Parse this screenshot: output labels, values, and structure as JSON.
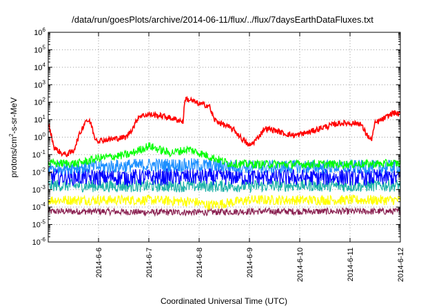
{
  "chart_data": {
    "type": "line",
    "title": "/data/run/goesPlots/archive/2014-06-11/flux/../flux/7daysEarthDataFluxes.txt",
    "xlabel": "Coordinated Universal Time (UTC)",
    "ylabel": {
      "prefix": "protons/cm",
      "sup": "2",
      "suffix": "-s-sr-MeV"
    },
    "yscale": "log",
    "ylim": [
      1e-06,
      1000000.0
    ],
    "y_ticks": [
      {
        "base": "10",
        "exp": "-6",
        "value": -6
      },
      {
        "base": "10",
        "exp": "-5",
        "value": -5
      },
      {
        "base": "10",
        "exp": "-4",
        "value": -4
      },
      {
        "base": "10",
        "exp": "-3",
        "value": -3
      },
      {
        "base": "10",
        "exp": "-2",
        "value": -2
      },
      {
        "base": "10",
        "exp": "-1",
        "value": -1
      },
      {
        "base": "10",
        "exp": "0",
        "value": 0
      },
      {
        "base": "10",
        "exp": "1",
        "value": 1
      },
      {
        "base": "10",
        "exp": "2",
        "value": 2
      },
      {
        "base": "10",
        "exp": "3",
        "value": 3
      },
      {
        "base": "10",
        "exp": "4",
        "value": 4
      },
      {
        "base": "10",
        "exp": "5",
        "value": 5
      },
      {
        "base": "10",
        "exp": "6",
        "value": 6
      }
    ],
    "xlim": [
      5.0,
      12.0
    ],
    "x_ticks": [
      {
        "label": "2014-6-6",
        "value": 6
      },
      {
        "label": "2014-6-7",
        "value": 7
      },
      {
        "label": "2014-6-8",
        "value": 8
      },
      {
        "label": "2014-6-9",
        "value": 9
      },
      {
        "label": "2014-6-10",
        "value": 10
      },
      {
        "label": "2014-6-11",
        "value": 11
      },
      {
        "label": "2014-6-12",
        "value": 12
      }
    ],
    "grid": true,
    "series": [
      {
        "color": "#8b2252",
        "noise": 0.12,
        "points": [
          [
            5.0,
            -4.25
          ],
          [
            6.0,
            -4.25
          ],
          [
            7.0,
            -4.3
          ],
          [
            8.0,
            -4.3
          ],
          [
            9.0,
            -4.25
          ],
          [
            10.0,
            -4.25
          ],
          [
            11.0,
            -4.25
          ],
          [
            12.0,
            -4.25
          ]
        ]
      },
      {
        "color": "#ffff00",
        "noise": 0.18,
        "points": [
          [
            5.0,
            -3.6
          ],
          [
            6.0,
            -3.6
          ],
          [
            7.0,
            -3.6
          ],
          [
            7.9,
            -3.7
          ],
          [
            8.2,
            -3.9
          ],
          [
            9.0,
            -3.6
          ],
          [
            10.0,
            -3.6
          ],
          [
            11.0,
            -3.6
          ],
          [
            12.0,
            -3.6
          ]
        ]
      },
      {
        "color": "#20b2aa",
        "noise": 0.22,
        "points": [
          [
            5.0,
            -2.75
          ],
          [
            6.0,
            -2.8
          ],
          [
            7.0,
            -2.8
          ],
          [
            8.0,
            -2.8
          ],
          [
            9.0,
            -2.8
          ],
          [
            10.0,
            -2.75
          ],
          [
            11.0,
            -2.8
          ],
          [
            12.0,
            -2.75
          ]
        ]
      },
      {
        "color": "#0000ff",
        "noise": 0.3,
        "points": [
          [
            5.0,
            -2.25
          ],
          [
            6.0,
            -2.3
          ],
          [
            7.0,
            -2.3
          ],
          [
            8.0,
            -2.25
          ],
          [
            9.0,
            -2.3
          ],
          [
            10.0,
            -2.3
          ],
          [
            11.0,
            -2.3
          ],
          [
            12.0,
            -2.3
          ]
        ]
      },
      {
        "color": "#1e90ff",
        "noise": 0.25,
        "points": [
          [
            5.0,
            -1.75
          ],
          [
            6.0,
            -1.7
          ],
          [
            7.0,
            -1.6
          ],
          [
            8.0,
            -1.6
          ],
          [
            9.0,
            -1.7
          ],
          [
            10.0,
            -1.7
          ],
          [
            11.0,
            -1.7
          ],
          [
            12.0,
            -1.7
          ]
        ]
      },
      {
        "color": "#00ff00",
        "noise": 0.15,
        "points": [
          [
            5.0,
            -1.5
          ],
          [
            5.6,
            -1.5
          ],
          [
            6.0,
            -1.2
          ],
          [
            6.6,
            -1.0
          ],
          [
            7.0,
            -0.5
          ],
          [
            7.4,
            -0.9
          ],
          [
            7.8,
            -0.7
          ],
          [
            8.2,
            -1.1
          ],
          [
            8.6,
            -1.5
          ],
          [
            9.0,
            -1.55
          ],
          [
            10.0,
            -1.55
          ],
          [
            11.0,
            -1.55
          ],
          [
            12.0,
            -1.5
          ]
        ]
      },
      {
        "color": "#ff0000",
        "noise": 0.1,
        "points": [
          [
            5.0,
            0.8
          ],
          [
            5.12,
            -0.6
          ],
          [
            5.25,
            -0.9
          ],
          [
            5.35,
            -1.0
          ],
          [
            5.5,
            -0.8
          ],
          [
            5.6,
            0.0
          ],
          [
            5.75,
            1.0
          ],
          [
            5.85,
            0.8
          ],
          [
            5.92,
            0.0
          ],
          [
            6.0,
            -0.2
          ],
          [
            6.3,
            -0.1
          ],
          [
            6.55,
            0.0
          ],
          [
            6.7,
            0.6
          ],
          [
            6.8,
            1.2
          ],
          [
            7.0,
            1.3
          ],
          [
            7.3,
            1.2
          ],
          [
            7.55,
            1.0
          ],
          [
            7.68,
            0.9
          ],
          [
            7.72,
            2.2
          ],
          [
            7.85,
            2.1
          ],
          [
            8.0,
            1.9
          ],
          [
            8.2,
            1.8
          ],
          [
            8.3,
            1.0
          ],
          [
            8.5,
            0.7
          ],
          [
            8.7,
            0.4
          ],
          [
            8.85,
            -0.1
          ],
          [
            9.0,
            -0.5
          ],
          [
            9.15,
            -0.1
          ],
          [
            9.3,
            0.5
          ],
          [
            9.5,
            0.4
          ],
          [
            9.7,
            0.2
          ],
          [
            9.9,
            0.1
          ],
          [
            10.2,
            0.3
          ],
          [
            10.5,
            0.6
          ],
          [
            10.8,
            0.8
          ],
          [
            11.0,
            0.8
          ],
          [
            11.2,
            0.8
          ],
          [
            11.3,
            0.3
          ],
          [
            11.42,
            -0.2
          ],
          [
            11.5,
            0.8
          ],
          [
            11.7,
            1.1
          ],
          [
            11.85,
            1.4
          ],
          [
            12.0,
            1.3
          ]
        ]
      }
    ]
  }
}
